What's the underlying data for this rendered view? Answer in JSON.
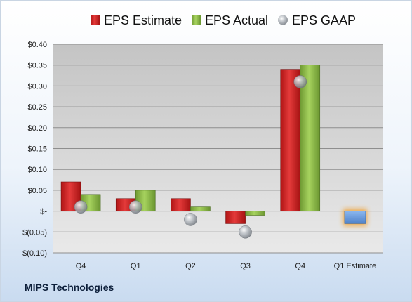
{
  "company_name": "MIPS Technologies",
  "colors": {
    "estimate": "#d42323",
    "actual": "#8fc04a",
    "gaap": "#9aa0a6",
    "projection": "#6f9fe0",
    "projection_glow": "#f0a030"
  },
  "legend": {
    "estimate_label": "EPS Estimate",
    "actual_label": "EPS Actual",
    "gaap_label": "EPS GAAP"
  },
  "chart_data": {
    "type": "bar",
    "categories": [
      "Q4",
      "Q1",
      "Q2",
      "Q3",
      "Q4",
      "Q1 Estimate"
    ],
    "series": [
      {
        "name": "EPS Estimate",
        "values": [
          0.07,
          0.03,
          0.03,
          -0.03,
          0.34,
          null
        ]
      },
      {
        "name": "EPS Actual",
        "values": [
          0.04,
          0.05,
          0.01,
          -0.01,
          0.35,
          null
        ]
      },
      {
        "name": "EPS GAAP",
        "values": [
          0.01,
          0.01,
          -0.02,
          -0.05,
          0.31,
          null
        ]
      }
    ],
    "projection": {
      "category": "Q1 Estimate",
      "value": -0.03
    },
    "ylim": [
      -0.1,
      0.4
    ],
    "yticks": [
      {
        "value": 0.4,
        "label": "$0.40"
      },
      {
        "value": 0.35,
        "label": "$0.35"
      },
      {
        "value": 0.3,
        "label": "$0.30"
      },
      {
        "value": 0.25,
        "label": "$0.25"
      },
      {
        "value": 0.2,
        "label": "$0.20"
      },
      {
        "value": 0.15,
        "label": "$0.15"
      },
      {
        "value": 0.1,
        "label": "$0.10"
      },
      {
        "value": 0.05,
        "label": "$0.05"
      },
      {
        "value": 0.0,
        "label": "$-"
      },
      {
        "value": -0.05,
        "label": "$(0.05)"
      },
      {
        "value": -0.1,
        "label": "$(0.10)"
      }
    ],
    "grid": true,
    "legend_position": "top"
  }
}
